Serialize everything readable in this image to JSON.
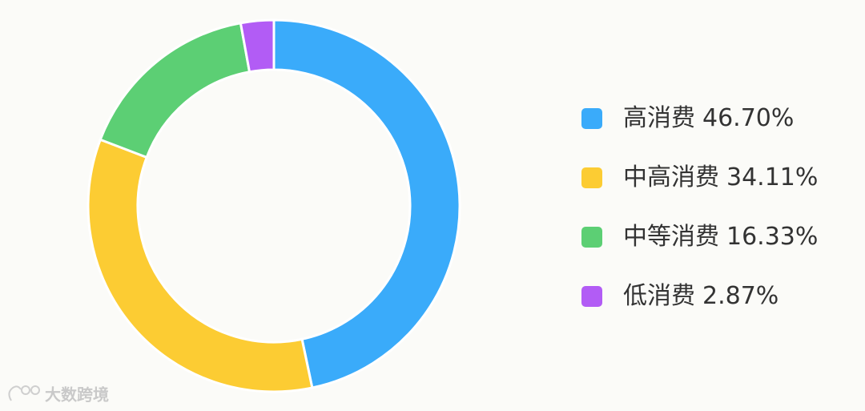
{
  "chart_data": {
    "type": "pie",
    "donut": true,
    "categories": [
      "高消费",
      "中高消费",
      "中等消费",
      "低消费"
    ],
    "values": [
      46.7,
      34.11,
      16.33,
      2.87
    ],
    "value_labels": [
      "46.70%",
      "34.11%",
      "16.33%",
      "2.87%"
    ],
    "colors": [
      "#3aabfa",
      "#fccc33",
      "#5ccf74",
      "#b25cf5"
    ],
    "legend": "right"
  },
  "watermark": "大数跨境"
}
